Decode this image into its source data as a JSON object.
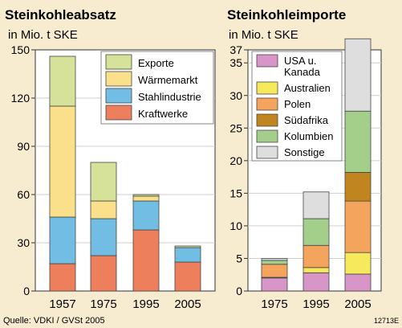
{
  "chart_data": [
    {
      "type": "bar",
      "stacked": true,
      "title": "Steinkohleabsatz",
      "subtitle": "in Mio. t SKE",
      "categories": [
        "1957",
        "1975",
        "1995",
        "2005"
      ],
      "yticks": [
        "0",
        "30",
        "60",
        "90",
        "120",
        "150"
      ],
      "ylim": [
        0,
        150
      ],
      "grid": true,
      "legend_position": "top-right",
      "series": [
        {
          "name": "Kraftwerke",
          "color": "#ee7f5d",
          "values": [
            17,
            22,
            38,
            18
          ]
        },
        {
          "name": "Stahlindustrie",
          "color": "#72bde3",
          "values": [
            29,
            23,
            18,
            9
          ]
        },
        {
          "name": "Wärmemarkt",
          "color": "#fbe08b",
          "values": [
            69,
            11,
            3,
            0
          ]
        },
        {
          "name": "Exporte",
          "color": "#d6e29a",
          "values": [
            31,
            24,
            1,
            1
          ]
        }
      ]
    },
    {
      "type": "bar",
      "stacked": true,
      "title": "Steinkohleimporte",
      "subtitle": "in Mio. t SKE",
      "categories": [
        "1975",
        "1995",
        "2005"
      ],
      "yticks": [
        "0",
        "5",
        "10",
        "15",
        "20",
        "25",
        "30",
        "35",
        "37"
      ],
      "ylim": [
        0,
        37
      ],
      "grid": true,
      "legend_position": "top-left",
      "series": [
        {
          "name": "USA u.\nKanada",
          "color": "#d795c8",
          "values": [
            2,
            2.8,
            2.6
          ]
        },
        {
          "name": "Australien",
          "color": "#f6ea5c",
          "values": [
            0.1,
            0.8,
            3.3
          ]
        },
        {
          "name": "Polen",
          "color": "#f5a45d",
          "values": [
            2,
            3.4,
            7.9
          ]
        },
        {
          "name": "Südafrika",
          "color": "#c1851f",
          "values": [
            0,
            0,
            4.4
          ]
        },
        {
          "name": "Kolumbien",
          "color": "#a3cf8b",
          "values": [
            0.6,
            4.1,
            9.4
          ]
        },
        {
          "name": "Sonstige",
          "color": "#dedede",
          "values": [
            0.3,
            4.1,
            11.1
          ]
        }
      ]
    }
  ],
  "footer": {
    "source": "Quelle: VDKI / GVSt 2005",
    "code": "12713E"
  }
}
